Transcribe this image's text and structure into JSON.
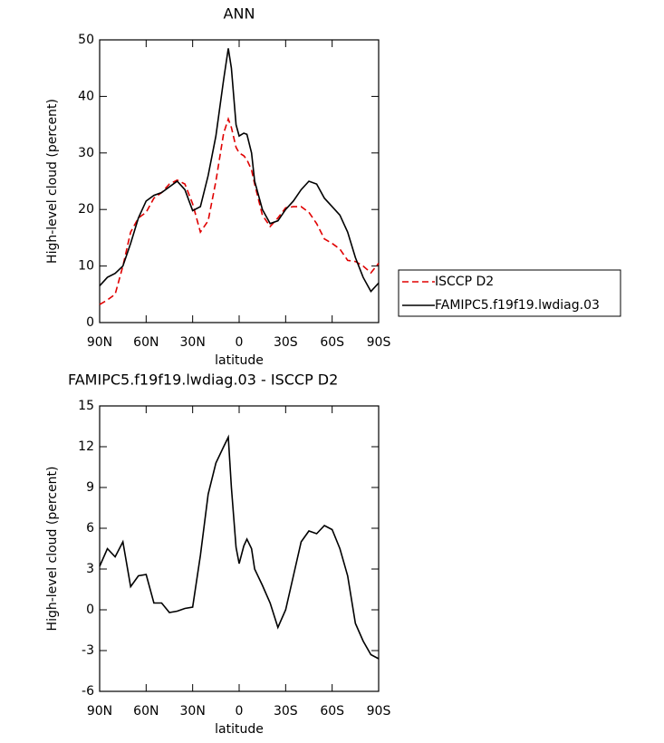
{
  "chart_data": [
    {
      "type": "line",
      "title": "ANN",
      "x_label": "latitude",
      "y_label": "High-level cloud (percent)",
      "x": [
        90,
        85,
        80,
        75,
        70,
        65,
        60,
        55,
        50,
        45,
        40,
        35,
        30,
        25,
        20,
        15,
        10,
        7,
        5,
        2,
        0,
        -3,
        -5,
        -8,
        -10,
        -15,
        -20,
        -25,
        -30,
        -35,
        -40,
        -45,
        -50,
        -55,
        -60,
        -65,
        -70,
        -75,
        -80,
        -85,
        -90
      ],
      "series": [
        {
          "name": "ISCCP D2",
          "color": "#e00000",
          "style": "dashed",
          "values": [
            3.2,
            4,
            5,
            10,
            16,
            18.5,
            19.5,
            22,
            23,
            24.5,
            25.2,
            24.5,
            21,
            16,
            18,
            25,
            33.5,
            36,
            34.5,
            31,
            30,
            29.5,
            28.8,
            27,
            24.5,
            19,
            17,
            18.5,
            20.3,
            20.5,
            20.5,
            19.5,
            17.5,
            14.8,
            14,
            13,
            11,
            10.8,
            10,
            8.8,
            10.5
          ]
        },
        {
          "name": "FAMIPC5.f19f19.lwdiag.03",
          "color": "#000000",
          "style": "solid",
          "values": [
            6.5,
            8,
            8.7,
            10,
            14,
            18.5,
            21.5,
            22.5,
            23,
            24,
            25,
            23.5,
            19.8,
            20.5,
            26,
            33,
            43,
            48.5,
            45,
            35,
            33,
            33.5,
            33.3,
            30,
            25,
            20,
            17.5,
            18,
            20,
            21.5,
            23.5,
            25,
            24.5,
            22,
            20.5,
            19,
            16,
            11.5,
            8,
            5.5,
            7
          ]
        }
      ],
      "xlim": [
        90,
        -90
      ],
      "xticks": [
        {
          "value": 90,
          "label": "90N"
        },
        {
          "value": 60,
          "label": "60N"
        },
        {
          "value": 30,
          "label": "30N"
        },
        0,
        {
          "value": -30,
          "label": "30S"
        },
        {
          "value": -60,
          "label": "60S"
        },
        {
          "value": -90,
          "label": "90S"
        }
      ],
      "ylim": [
        0,
        50
      ],
      "yticks": [
        0,
        10,
        20,
        30,
        40,
        50
      ],
      "legend": "right"
    },
    {
      "type": "line",
      "title": "FAMIPC5.f19f19.lwdiag.03 - ISCCP D2",
      "x_label": "latitude",
      "y_label": "High-level cloud (percent)",
      "x": [
        90,
        85,
        80,
        75,
        70,
        65,
        60,
        55,
        50,
        45,
        40,
        35,
        30,
        25,
        20,
        15,
        10,
        7,
        5,
        2,
        0,
        -3,
        -5,
        -8,
        -10,
        -15,
        -20,
        -25,
        -30,
        -35,
        -40,
        -45,
        -50,
        -55,
        -60,
        -65,
        -70,
        -75,
        -80,
        -85,
        -90
      ],
      "values": [
        3.2,
        4.5,
        3.9,
        5,
        1.7,
        2.5,
        2.6,
        0.5,
        0.5,
        -0.2,
        -0.1,
        0.1,
        0.2,
        4,
        8.5,
        10.8,
        12,
        12.7,
        9,
        4.6,
        3.4,
        4.7,
        5.2,
        4.5,
        3,
        1.8,
        0.5,
        -1.3,
        0,
        2.5,
        5,
        5.8,
        5.6,
        6.2,
        5.9,
        4.5,
        2.5,
        -1,
        -2.3,
        -3.3,
        -3.6
      ],
      "color": "#000000",
      "xlim": [
        90,
        -90
      ],
      "xticks": [
        {
          "value": 90,
          "label": "90N"
        },
        {
          "value": 60,
          "label": "60N"
        },
        {
          "value": 30,
          "label": "30N"
        },
        0,
        {
          "value": -30,
          "label": "30S"
        },
        {
          "value": -60,
          "label": "60S"
        },
        {
          "value": -90,
          "label": "90S"
        }
      ],
      "ylim": [
        -6,
        15
      ],
      "yticks": [
        -6,
        -3,
        0,
        3,
        6,
        9,
        12,
        15
      ]
    }
  ]
}
